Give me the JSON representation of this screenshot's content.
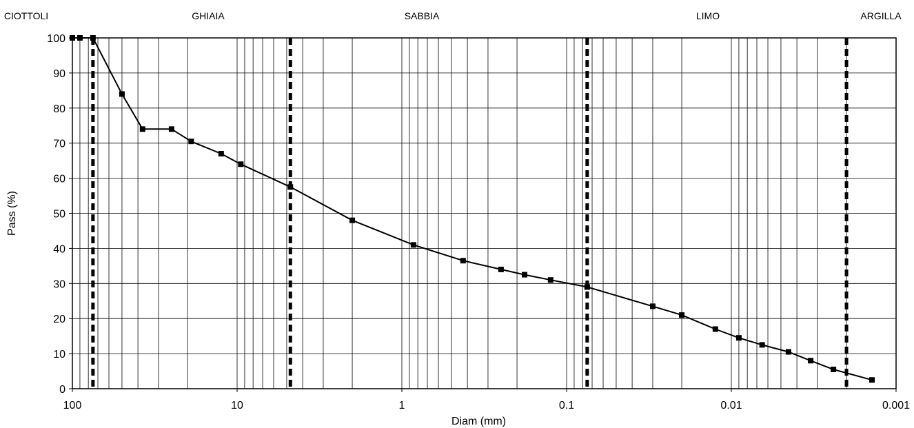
{
  "chart_data": {
    "type": "scatter",
    "subtype": "line-with-markers",
    "x_scale": "log",
    "x_reversed": true,
    "xlim": [
      100,
      0.001
    ],
    "ylim": [
      0,
      100
    ],
    "xlabel": "Diam (mm)",
    "ylabel": "Pass (%)",
    "x_ticks": [
      {
        "value": 100,
        "label": "100"
      },
      {
        "value": 10,
        "label": "10"
      },
      {
        "value": 1,
        "label": "1"
      },
      {
        "value": 0.1,
        "label": "0.1"
      },
      {
        "value": 0.01,
        "label": "0.01"
      },
      {
        "value": 0.001,
        "label": "0.001"
      }
    ],
    "y_ticks": [
      0,
      10,
      20,
      30,
      40,
      50,
      60,
      70,
      80,
      90,
      100
    ],
    "grid": true,
    "zones": [
      {
        "label": "CIOTTOLI"
      },
      {
        "label": "GHIAIA"
      },
      {
        "label": "SABBIA"
      },
      {
        "label": "LIMO"
      },
      {
        "label": "ARGILLA"
      }
    ],
    "boundaries": [
      75,
      4.75,
      0.075,
      0.002
    ],
    "series": [
      {
        "color": "#000000",
        "points": [
          {
            "x": 100,
            "y": 100
          },
          {
            "x": 90,
            "y": 100
          },
          {
            "x": 75,
            "y": 100
          },
          {
            "x": 50,
            "y": 84
          },
          {
            "x": 37.5,
            "y": 74
          },
          {
            "x": 25,
            "y": 74
          },
          {
            "x": 19,
            "y": 70.5
          },
          {
            "x": 12.5,
            "y": 67
          },
          {
            "x": 9.5,
            "y": 64
          },
          {
            "x": 4.75,
            "y": 57.5
          },
          {
            "x": 2,
            "y": 48
          },
          {
            "x": 0.85,
            "y": 41
          },
          {
            "x": 0.425,
            "y": 36.5
          },
          {
            "x": 0.25,
            "y": 34
          },
          {
            "x": 0.18,
            "y": 32.5
          },
          {
            "x": 0.125,
            "y": 31
          },
          {
            "x": 0.075,
            "y": 29
          },
          {
            "x": 0.03,
            "y": 23.5
          },
          {
            "x": 0.02,
            "y": 21
          },
          {
            "x": 0.0125,
            "y": 17
          },
          {
            "x": 0.009,
            "y": 14.5
          },
          {
            "x": 0.0065,
            "y": 12.5
          },
          {
            "x": 0.0045,
            "y": 10.5
          },
          {
            "x": 0.0033,
            "y": 8
          },
          {
            "x": 0.0024,
            "y": 5.5
          },
          {
            "x": 0.0014,
            "y": 2.5
          }
        ]
      }
    ]
  }
}
